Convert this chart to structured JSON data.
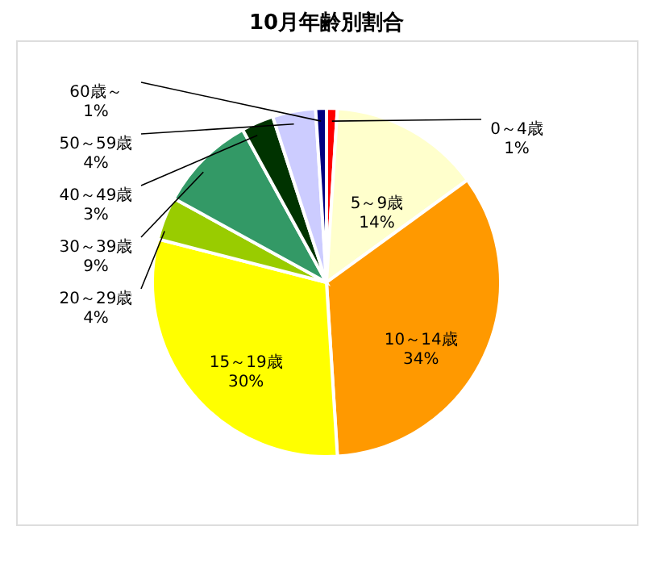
{
  "chart_data": {
    "type": "pie",
    "title": "10月年齢別割合",
    "categories": [
      "0～4歳",
      "5～9歳",
      "10～14歳",
      "15～19歳",
      "20～29歳",
      "30～39歳",
      "40～49歳",
      "50～59歳",
      "60歳～"
    ],
    "values": [
      1,
      14,
      34,
      30,
      4,
      9,
      3,
      4,
      1
    ],
    "colors": [
      "#ff0000",
      "#ffffcc",
      "#ff9900",
      "#ffff00",
      "#99cc00",
      "#339966",
      "#003300",
      "#ccccff",
      "#000080"
    ],
    "value_labels": [
      "1%",
      "14%",
      "34%",
      "30%",
      "4%",
      "9%",
      "3%",
      "4%",
      "1%"
    ],
    "legend": false
  }
}
